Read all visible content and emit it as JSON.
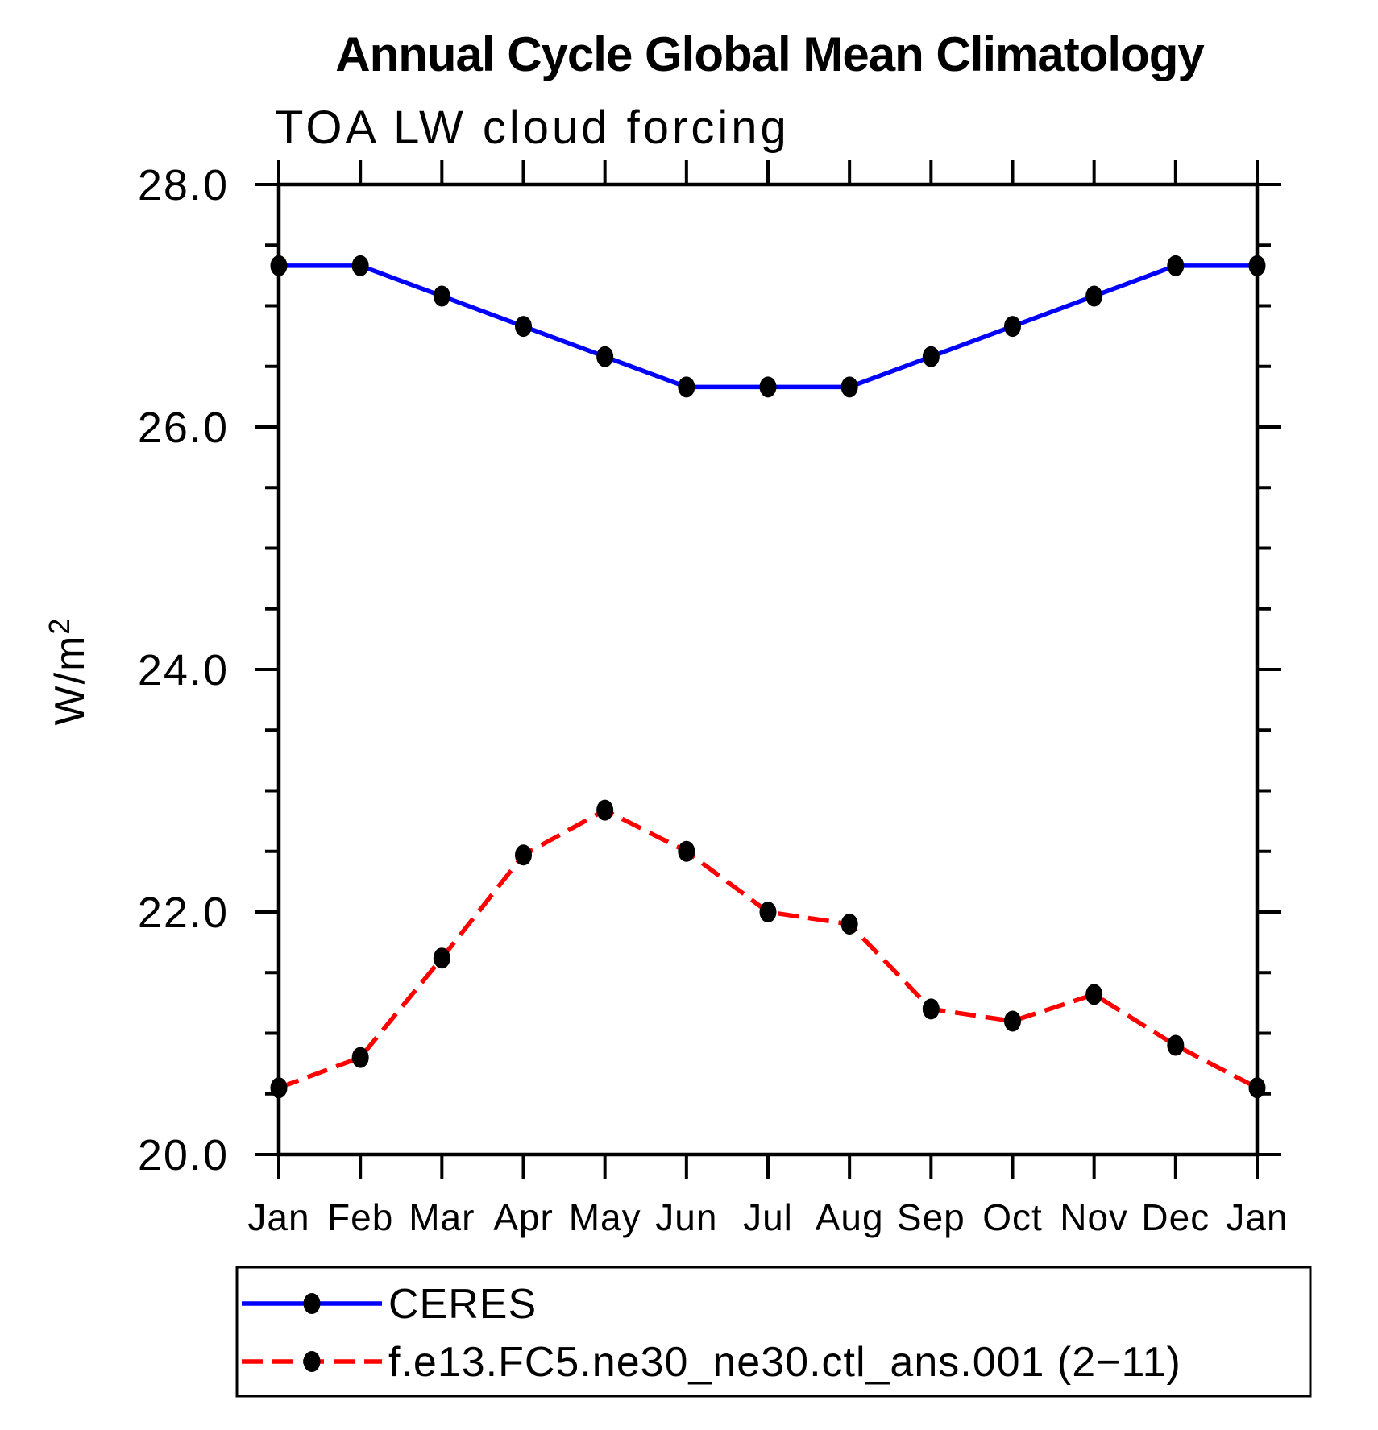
{
  "page": {
    "background": "#ffffff",
    "text_color": "#000000"
  },
  "chart_data": {
    "type": "line",
    "title": "Annual Cycle Global Mean Climatology",
    "subtitle": "TOA LW cloud forcing",
    "ylabel": "W/m²",
    "ylabel_base": "W/m",
    "ylabel_sup": "2",
    "categories": [
      "Jan",
      "Feb",
      "Mar",
      "Apr",
      "May",
      "Jun",
      "Jul",
      "Aug",
      "Sep",
      "Oct",
      "Nov",
      "Dec",
      "Jan"
    ],
    "ylim": [
      20.0,
      28.0
    ],
    "yticks_major": {
      "values": [
        28.0,
        26.0,
        24.0,
        22.0,
        20.0
      ],
      "labels": [
        "28.0",
        "26.0",
        "24.0",
        "22.0",
        "20.0"
      ]
    },
    "ytick_minor_step": 0.5,
    "grid": false,
    "legend_position": "bottom-left",
    "series": [
      {
        "name": "CERES",
        "line_color": "#0000ff",
        "line_style": "solid",
        "marker": "filled-ellipse",
        "marker_color": "#000000",
        "values": [
          27.33,
          27.33,
          27.08,
          26.83,
          26.58,
          26.33,
          26.33,
          26.33,
          26.58,
          26.83,
          27.08,
          27.33,
          27.33
        ]
      },
      {
        "name": "f.e13.FC5.ne30_ne30.ctl_ans.001 (2−11)",
        "line_color": "#ff0000",
        "line_style": "dashed",
        "marker": "filled-ellipse",
        "marker_color": "#000000",
        "values": [
          20.55,
          20.8,
          21.62,
          22.47,
          22.84,
          22.5,
          22.0,
          21.9,
          21.2,
          21.1,
          21.32,
          20.9,
          20.55
        ]
      }
    ]
  }
}
